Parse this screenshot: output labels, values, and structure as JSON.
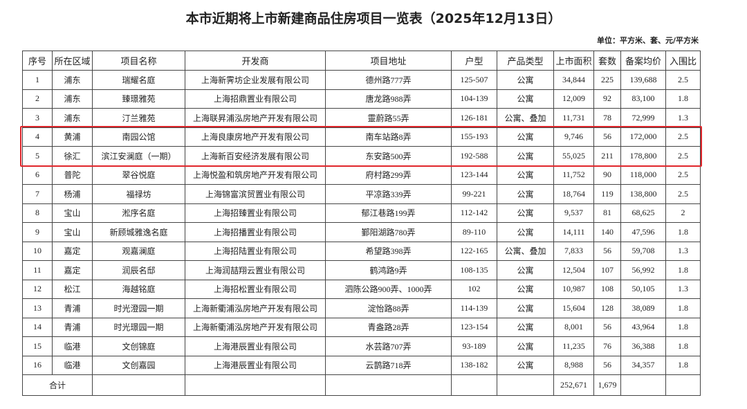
{
  "header": {
    "title": "本市近期将上市新建商品住房项目一览表（2025年12月13日）",
    "unit": "单位：平方米、套、元/平方米"
  },
  "table": {
    "headers": [
      "序号",
      "所在区域",
      "项目名称",
      "开发商",
      "项目地址",
      "户型",
      "产品类型",
      "上市面积",
      "套数",
      "备案均价",
      "入围比"
    ],
    "rows": [
      [
        "1",
        "浦东",
        "瑞耀名庭",
        "上海新霁坊企业发展有限公司",
        "德州路777弄",
        "125-507",
        "公寓",
        "34,844",
        "225",
        "139,688",
        "2.5"
      ],
      [
        "2",
        "浦东",
        "臻璟雅苑",
        "上海招鼎置业有限公司",
        "唐龙路988弄",
        "104-139",
        "公寓",
        "12,009",
        "92",
        "83,100",
        "1.8"
      ],
      [
        "3",
        "浦东",
        "汀兰雅苑",
        "上海联昇浦泓房地产开发有限公司",
        "靈蔚路55弄",
        "126-181",
        "公寓、叠加",
        "11,731",
        "78",
        "72,999",
        "1.3"
      ],
      [
        "4",
        "黄浦",
        "南园公馆",
        "上海良康房地产开发有限公司",
        "南车站路8弄",
        "155-193",
        "公寓",
        "9,746",
        "56",
        "172,000",
        "2.5"
      ],
      [
        "5",
        "徐汇",
        "滨江安澜庭（一期）",
        "上海新百安经济发展有限公司",
        "东安路500弄",
        "192-588",
        "公寓",
        "55,025",
        "211",
        "178,800",
        "2.5"
      ],
      [
        "6",
        "普陀",
        "翠谷悦庭",
        "上海悦盈和筑房地产开发有限公司",
        "府村路299弄",
        "123-144",
        "公寓",
        "11,752",
        "90",
        "118,000",
        "2.5"
      ],
      [
        "7",
        "杨浦",
        "福禄坊",
        "上海锦富滨贸置业有限公司",
        "平凉路339弄",
        "99-221",
        "公寓",
        "18,764",
        "119",
        "138,800",
        "2.5"
      ],
      [
        "8",
        "宝山",
        "淞序名庭",
        "上海招臻置业有限公司",
        "郁江巷路199弄",
        "112-142",
        "公寓",
        "9,537",
        "81",
        "68,625",
        "2"
      ],
      [
        "9",
        "宝山",
        "新顾城雅逸名庭",
        "上海招播置业有限公司",
        "鄞阳湖路780弄",
        "89-110",
        "公寓",
        "14,111",
        "140",
        "47,596",
        "1.8"
      ],
      [
        "10",
        "嘉定",
        "观嘉澜庭",
        "上海招陆置业有限公司",
        "希望路398弄",
        "122-165",
        "公寓、叠加",
        "7,833",
        "56",
        "59,708",
        "1.3"
      ],
      [
        "11",
        "嘉定",
        "润辰名邸",
        "上海润喆翔云置业有限公司",
        "鹤鸿路9弄",
        "108-135",
        "公寓",
        "12,504",
        "107",
        "56,992",
        "1.8"
      ],
      [
        "12",
        "松江",
        "海越铭庭",
        "上海招松置业有限公司",
        "泗陈公路900弄、1000弄",
        "102",
        "公寓",
        "10,987",
        "108",
        "50,105",
        "1.3"
      ],
      [
        "13",
        "青浦",
        "时光澄园一期",
        "上海新衢浦泓房地产开发有限公司",
        "淀怡路88弄",
        "114-139",
        "公寓",
        "15,604",
        "128",
        "38,089",
        "1.8"
      ],
      [
        "14",
        "青浦",
        "时光璟园一期",
        "上海新衢浦泓房地产开发有限公司",
        "青盎路28弄",
        "123-154",
        "公寓",
        "8,001",
        "56",
        "43,964",
        "1.8"
      ],
      [
        "15",
        "临港",
        "文创锦庭",
        "上海港辰置业有限公司",
        "水芸路707弄",
        "93-189",
        "公寓",
        "11,235",
        "76",
        "36,388",
        "1.8"
      ],
      [
        "16",
        "临港",
        "文创嘉园",
        "上海港辰置业有限公司",
        "云鹊路718弄",
        "138-182",
        "公寓",
        "8,988",
        "56",
        "34,357",
        "1.8"
      ]
    ],
    "total": {
      "label": "合计",
      "area": "252,671",
      "units": "1,679"
    }
  }
}
